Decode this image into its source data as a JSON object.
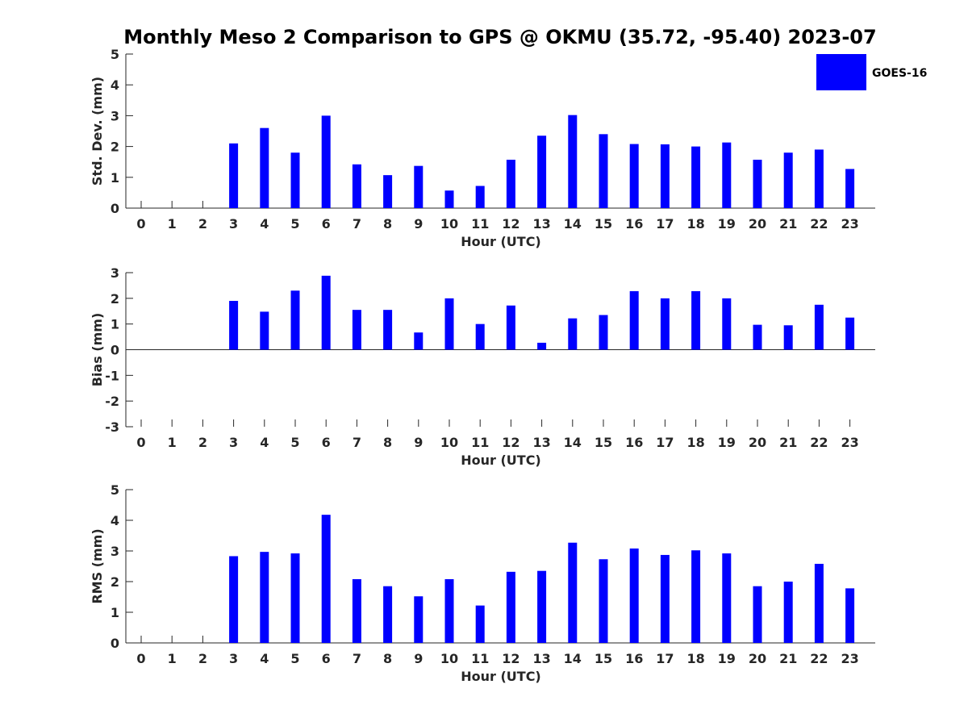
{
  "chart_data": {
    "type": "bar",
    "title": "Monthly Meso 2 Comparison to GPS @ OKMU (35.72, -95.40) 2023-07",
    "legend": {
      "placement": "top-right",
      "entries": [
        {
          "label": "GOES-16",
          "color": "#0000ff"
        }
      ]
    },
    "bar_color": "#0000ff",
    "grid": false,
    "categories": [
      "0",
      "1",
      "2",
      "3",
      "4",
      "5",
      "6",
      "7",
      "8",
      "9",
      "10",
      "11",
      "12",
      "13",
      "14",
      "15",
      "16",
      "17",
      "18",
      "19",
      "20",
      "21",
      "22",
      "23"
    ],
    "panels": [
      {
        "ylabel": "Std. Dev. (mm)",
        "xlabel": "Hour (UTC)",
        "ylim": [
          0,
          5
        ],
        "yticks": [
          "0",
          "1",
          "2",
          "3",
          "4",
          "5"
        ],
        "series": [
          {
            "name": "GOES-16",
            "values": [
              null,
              null,
              null,
              2.1,
              2.6,
              1.8,
              3.0,
              1.42,
              1.07,
              1.37,
              0.57,
              0.72,
              1.57,
              2.35,
              3.02,
              2.4,
              2.08,
              2.07,
              2.0,
              2.13,
              1.57,
              1.8,
              1.9,
              1.27
            ]
          }
        ]
      },
      {
        "ylabel": "Bias (mm)",
        "xlabel": "Hour (UTC)",
        "ylim": [
          -3,
          3
        ],
        "yticks": [
          "-3",
          "-2",
          "-1",
          "0",
          "1",
          "2",
          "3"
        ],
        "series": [
          {
            "name": "GOES-16",
            "values": [
              null,
              null,
              null,
              1.9,
              1.48,
              2.3,
              2.88,
              1.55,
              1.55,
              0.67,
              2.0,
              1.0,
              1.72,
              0.27,
              1.22,
              1.35,
              2.28,
              2.0,
              2.28,
              2.0,
              0.97,
              0.95,
              1.75,
              1.25
            ]
          }
        ]
      },
      {
        "ylabel": "RMS (mm)",
        "xlabel": "Hour (UTC)",
        "ylim": [
          0,
          5
        ],
        "yticks": [
          "0",
          "1",
          "2",
          "3",
          "4",
          "5"
        ],
        "series": [
          {
            "name": "GOES-16",
            "values": [
              null,
              null,
              null,
              2.83,
              2.97,
              2.92,
              4.18,
              2.08,
              1.85,
              1.52,
              2.08,
              1.22,
              2.32,
              2.35,
              3.27,
              2.73,
              3.08,
              2.87,
              3.02,
              2.92,
              1.85,
              2.0,
              2.58,
              1.78
            ]
          }
        ]
      }
    ]
  }
}
